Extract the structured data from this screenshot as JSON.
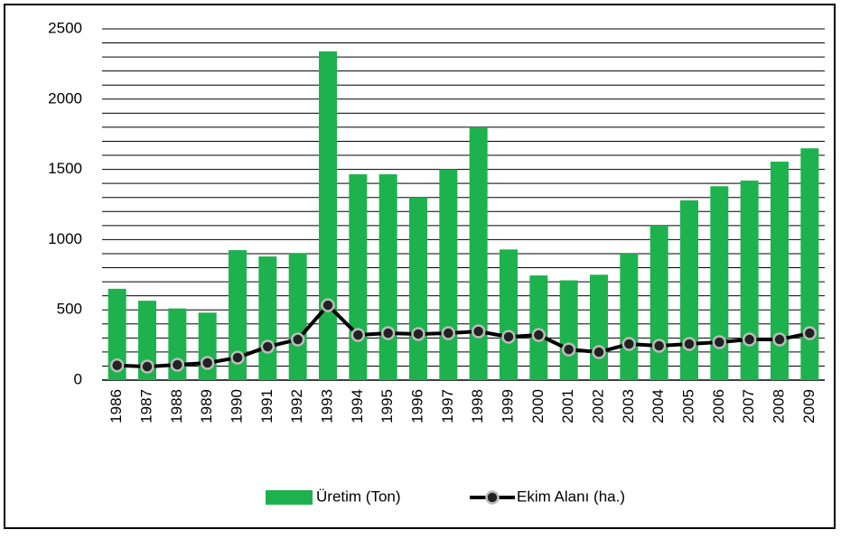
{
  "chart_data": {
    "type": "bar-line",
    "categories": [
      "1986",
      "1987",
      "1988",
      "1989",
      "1990",
      "1991",
      "1992",
      "1993",
      "1994",
      "1995",
      "1996",
      "1997",
      "1998",
      "1999",
      "2000",
      "2001",
      "2002",
      "2003",
      "2004",
      "2005",
      "2006",
      "2007",
      "2008",
      "2009"
    ],
    "series": [
      {
        "name": "Üretim (Ton)",
        "type": "bar",
        "color": "#1db24d",
        "values": [
          650,
          565,
          510,
          480,
          925,
          880,
          905,
          2340,
          1465,
          1465,
          1300,
          1500,
          1800,
          930,
          745,
          710,
          750,
          900,
          1100,
          1280,
          1380,
          1420,
          1555,
          1650
        ]
      },
      {
        "name": "Ekim Alanı (ha.)",
        "type": "line",
        "color": "#000000",
        "values": [
          105,
          96,
          109,
          122,
          160,
          238,
          289,
          533,
          321,
          334,
          328,
          334,
          347,
          308,
          321,
          218,
          199,
          257,
          244,
          257,
          270,
          289,
          289,
          334
        ]
      }
    ],
    "ylim": [
      0,
      2500
    ],
    "yticks": [
      0,
      500,
      1000,
      1500,
      2000,
      2500
    ],
    "minor_yticks": [
      100,
      200,
      300,
      400,
      600,
      700,
      800,
      900,
      1100,
      1200,
      1300,
      1400,
      1600,
      1700,
      1800,
      1900,
      2100,
      2200,
      2300,
      2400
    ],
    "grid": true,
    "legend": "bottom"
  }
}
